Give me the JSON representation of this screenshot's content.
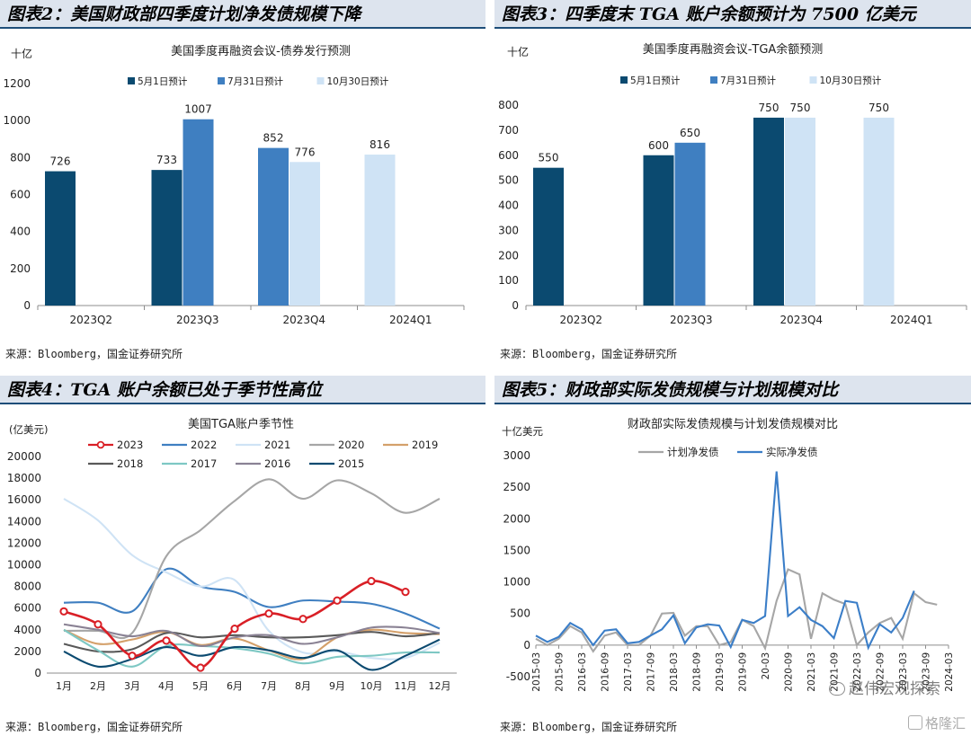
{
  "panels": {
    "p2": {
      "heading": "图表2：美国财政部四季度计划净发债规模下降",
      "source": "来源：Bloomberg，国金证券研究所"
    },
    "p3": {
      "heading": "图表3：四季度末 TGA 账户余额预计为 7500 亿美元",
      "source": "来源：Bloomberg，国金证券研究所"
    },
    "p4": {
      "heading": "图表4：TGA 账户余额已处于季节性高位",
      "source": "来源：Bloomberg，国金证券研究所"
    },
    "p5": {
      "heading": "图表5：财政部实际发债规模与计划规模对比",
      "source": "来源：Bloomberg，国金证券研究所"
    }
  },
  "watermark": "赵伟宏观探索",
  "watermark2": "格隆汇",
  "colors": {
    "dark": "#0b4a70",
    "mid": "#3f7fc1",
    "light": "#cfe3f5",
    "red": "#d91f26",
    "grey": "#a6a6a6",
    "blue": "#3b7ec8"
  },
  "chart_data": [
    {
      "type": "bar",
      "title": "美国季度再融资会议-债券发行预测",
      "unit_label": "十亿",
      "categories": [
        "2023Q2",
        "2023Q3",
        "2023Q4",
        "2024Q1"
      ],
      "ylim": [
        0,
        1200
      ],
      "yticks": [
        0,
        200,
        400,
        600,
        800,
        1000,
        1200
      ],
      "series": [
        {
          "name": "5月1日预计",
          "color": "#0b4a70",
          "values": [
            726,
            733,
            null,
            null
          ]
        },
        {
          "name": "7月31日预计",
          "color": "#3f7fc1",
          "values": [
            null,
            1007,
            852,
            null
          ]
        },
        {
          "name": "10月30日预计",
          "color": "#cfe3f5",
          "values": [
            null,
            null,
            776,
            816
          ]
        }
      ]
    },
    {
      "type": "bar",
      "title": "美国季度再融资会议-TGA余额预测",
      "unit_label": "十亿",
      "categories": [
        "2023Q2",
        "2023Q3",
        "2023Q4",
        "2024Q1"
      ],
      "ylim": [
        0,
        800
      ],
      "yticks": [
        0,
        100,
        200,
        300,
        400,
        500,
        600,
        700,
        800
      ],
      "series": [
        {
          "name": "5月1日预计",
          "color": "#0b4a70",
          "values": [
            550,
            600,
            750,
            null
          ]
        },
        {
          "name": "7月31日预计",
          "color": "#3f7fc1",
          "values": [
            null,
            650,
            null,
            null
          ]
        },
        {
          "name": "10月30日预计",
          "color": "#cfe3f5",
          "values": [
            null,
            null,
            750,
            750
          ]
        }
      ]
    },
    {
      "type": "line",
      "title": "美国TGA账户季节性",
      "unit_label": "(亿美元)",
      "x": [
        "1月",
        "2月",
        "3月",
        "4月",
        "5月",
        "6月",
        "7月",
        "8月",
        "9月",
        "10月",
        "11月",
        "12月"
      ],
      "ylim": [
        0,
        20000
      ],
      "yticks": [
        0,
        2000,
        4000,
        6000,
        8000,
        10000,
        12000,
        14000,
        16000,
        18000,
        20000
      ],
      "series": [
        {
          "name": "2023",
          "color": "#d91f26",
          "marker": true,
          "values": [
            5700,
            4500,
            1600,
            3000,
            500,
            4100,
            5500,
            5000,
            6700,
            8500,
            7500,
            null
          ]
        },
        {
          "name": "2022",
          "color": "#3f7fc1",
          "values": [
            6500,
            6500,
            5700,
            9600,
            8000,
            7500,
            6100,
            6700,
            6600,
            6400,
            5500,
            4100
          ]
        },
        {
          "name": "2021",
          "color": "#cfe3f5",
          "values": [
            16100,
            14100,
            10900,
            9300,
            8000,
            8600,
            3900,
            1900,
            2000,
            1400,
            1400,
            2800
          ]
        },
        {
          "name": "2020",
          "color": "#a6a6a6",
          "values": [
            3900,
            3900,
            3700,
            10800,
            13200,
            15900,
            17900,
            16100,
            17800,
            16600,
            14800,
            16100
          ]
        },
        {
          "name": "2019",
          "color": "#d4a06a",
          "values": [
            4000,
            2700,
            3100,
            3800,
            2600,
            3200,
            2100,
            1300,
            3300,
            4000,
            3700,
            3600
          ]
        },
        {
          "name": "2018",
          "color": "#595959",
          "values": [
            2700,
            2000,
            2200,
            3700,
            3300,
            3500,
            3300,
            3300,
            3500,
            3800,
            3400,
            3700
          ]
        },
        {
          "name": "2017",
          "color": "#7ec8c4",
          "values": [
            4000,
            2100,
            600,
            2500,
            2500,
            2300,
            1800,
            900,
            1500,
            1600,
            1900,
            1900
          ]
        },
        {
          "name": "2016",
          "color": "#8a8294",
          "values": [
            4500,
            4000,
            3400,
            3900,
            2500,
            3300,
            3500,
            2700,
            3300,
            4200,
            4200,
            3700
          ]
        },
        {
          "name": "2015",
          "color": "#0b4a70",
          "values": [
            2000,
            600,
            1300,
            2400,
            1600,
            2400,
            2100,
            1400,
            2100,
            300,
            1600,
            3100
          ]
        }
      ]
    },
    {
      "type": "line",
      "title": "财政部实际发债规模与计划发债规模对比",
      "unit_label": "十亿美元",
      "x": [
        "2015-03",
        "2015-06",
        "2015-09",
        "2015-12",
        "2016-03",
        "2016-06",
        "2016-09",
        "2016-12",
        "2017-03",
        "2017-06",
        "2017-09",
        "2017-12",
        "2018-03",
        "2018-06",
        "2018-09",
        "2018-12",
        "2019-03",
        "2019-06",
        "2019-09",
        "2019-12",
        "2020-03",
        "2020-06",
        "2020-09",
        "2020-12",
        "2021-03",
        "2021-06",
        "2021-09",
        "2021-12",
        "2022-03",
        "2022-06",
        "2022-09",
        "2022-12",
        "2023-03",
        "2023-06",
        "2023-09",
        "2023-12",
        "2024-03"
      ],
      "xtick_labels": [
        "2015-03",
        "2015-09",
        "2016-03",
        "2016-09",
        "2017-03",
        "2017-09",
        "2018-03",
        "2018-09",
        "2019-03",
        "2019-09",
        "20-03",
        "2020-09",
        "2021-03",
        "2021-09",
        "2022-03",
        "2022-09",
        "2023-03",
        "2023-09",
        "2024-03"
      ],
      "ylim": [
        -500,
        3000
      ],
      "yticks": [
        -500,
        0,
        500,
        1000,
        1500,
        2000,
        2500,
        3000
      ],
      "series": [
        {
          "name": "计划净发债",
          "color": "#a6a6a6",
          "values": [
            100,
            0,
            100,
            300,
            200,
            -100,
            150,
            200,
            0,
            0,
            150,
            500,
            510,
            150,
            300,
            300,
            0,
            50,
            400,
            300,
            -50,
            700,
            1200,
            1120,
            100,
            820,
            720,
            650,
            0,
            200,
            350,
            430,
            100,
            820,
            680,
            640,
            null
          ]
        },
        {
          "name": "实际净发债",
          "color": "#3b7ec8",
          "values": [
            150,
            50,
            130,
            350,
            250,
            0,
            230,
            250,
            30,
            50,
            150,
            250,
            470,
            30,
            280,
            330,
            310,
            -30,
            400,
            350,
            460,
            2750,
            460,
            600,
            400,
            300,
            110,
            700,
            670,
            -40,
            330,
            200,
            430,
            860,
            null,
            null,
            null
          ]
        }
      ]
    }
  ]
}
